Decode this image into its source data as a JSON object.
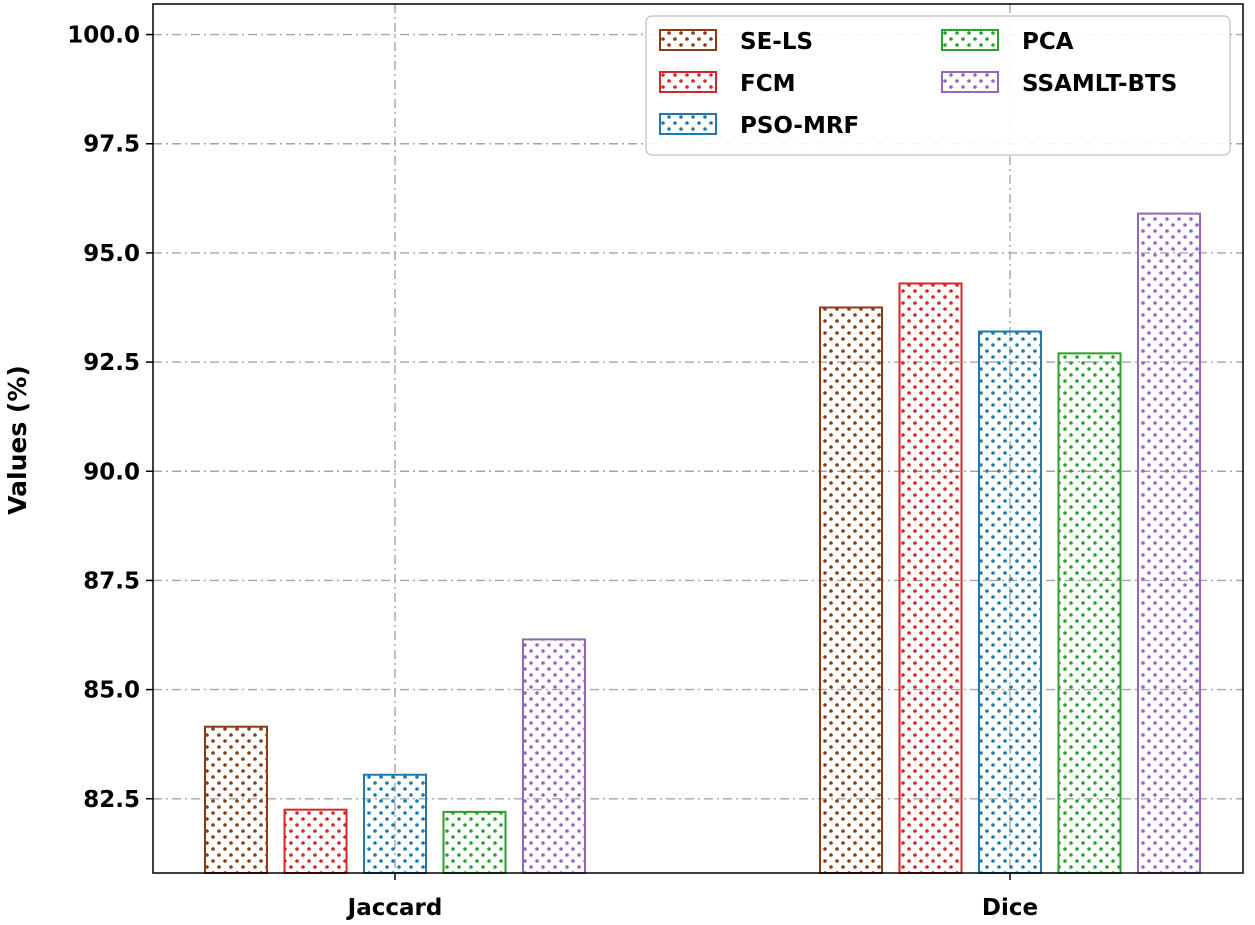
{
  "chart_data": {
    "type": "bar",
    "title": "",
    "xlabel": "",
    "ylabel": "Values (%)",
    "ylim": [
      80.8,
      100.7
    ],
    "yticks": [
      "82.5",
      "85.0",
      "87.5",
      "90.0",
      "92.5",
      "95.0",
      "97.5",
      "100.0"
    ],
    "categories": [
      "Jaccard",
      "Dice"
    ],
    "grid": true,
    "legend_position": "top-right",
    "series": [
      {
        "name": "SE-LS",
        "color": "#8B3A13",
        "values": [
          84.15,
          93.75
        ]
      },
      {
        "name": "FCM",
        "color": "#D62728",
        "values": [
          82.25,
          94.3
        ]
      },
      {
        "name": "PSO-MRF",
        "color": "#1F77B4",
        "values": [
          83.05,
          93.2
        ]
      },
      {
        "name": "PCA",
        "color": "#2CA02C",
        "values": [
          82.2,
          92.7
        ]
      },
      {
        "name": "SSAMLT-BTS",
        "color": "#9467BD",
        "values": [
          86.15,
          95.9
        ]
      }
    ]
  }
}
